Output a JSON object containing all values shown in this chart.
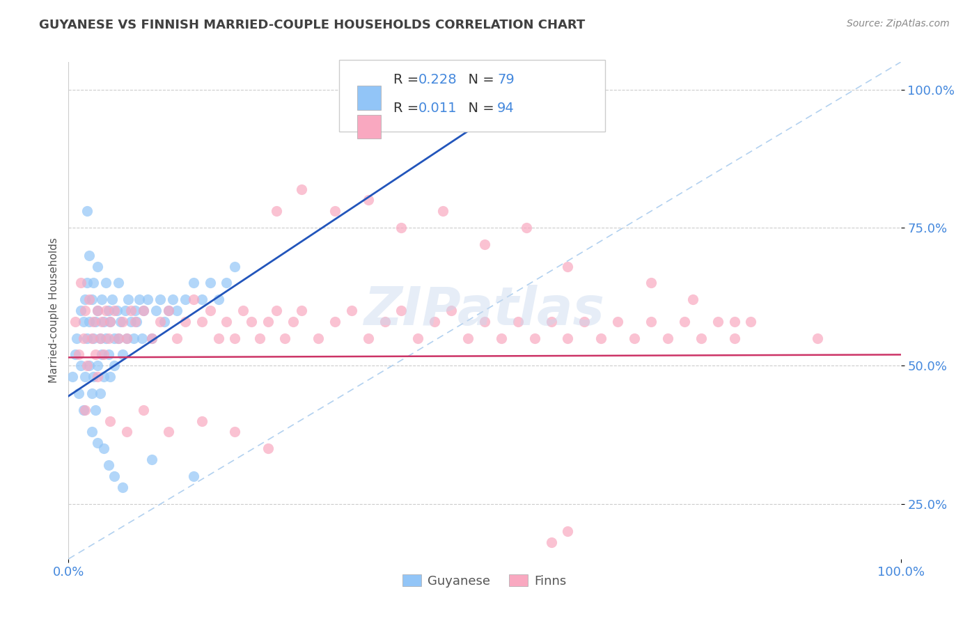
{
  "title": "GUYANESE VS FINNISH MARRIED-COUPLE HOUSEHOLDS CORRELATION CHART",
  "source_text": "Source: ZipAtlas.com",
  "ylabel": "Married-couple Households",
  "watermark": "ZIPatlas",
  "legend_labels": [
    "Guyanese",
    "Finns"
  ],
  "r_guyanese": 0.228,
  "n_guyanese": 79,
  "r_finns": 0.011,
  "n_finns": 94,
  "color_guyanese": "#92C5F7",
  "color_finns": "#F9A8C0",
  "color_trend_guyanese": "#2255BB",
  "color_trend_finns": "#CC3366",
  "color_ref_line": "#AACCEE",
  "color_title": "#404040",
  "color_tick": "#4488DD",
  "color_r_value": "#4488DD",
  "xlim": [
    0,
    1
  ],
  "ylim": [
    0.15,
    1.05
  ],
  "x_ticks": [
    0.0,
    1.0
  ],
  "x_tick_labels": [
    "0.0%",
    "100.0%"
  ],
  "y_tick_labels_right": [
    "25.0%",
    "50.0%",
    "75.0%",
    "100.0%"
  ],
  "y_tick_positions_right": [
    0.25,
    0.5,
    0.75,
    1.0
  ],
  "guyanese_x": [
    0.005,
    0.008,
    0.01,
    0.012,
    0.015,
    0.015,
    0.018,
    0.018,
    0.02,
    0.02,
    0.022,
    0.022,
    0.025,
    0.025,
    0.025,
    0.028,
    0.028,
    0.03,
    0.03,
    0.03,
    0.032,
    0.032,
    0.035,
    0.035,
    0.035,
    0.038,
    0.038,
    0.04,
    0.04,
    0.042,
    0.042,
    0.045,
    0.045,
    0.048,
    0.048,
    0.05,
    0.05,
    0.052,
    0.055,
    0.055,
    0.058,
    0.06,
    0.06,
    0.062,
    0.065,
    0.068,
    0.07,
    0.072,
    0.075,
    0.078,
    0.08,
    0.082,
    0.085,
    0.088,
    0.09,
    0.095,
    0.1,
    0.105,
    0.11,
    0.115,
    0.12,
    0.125,
    0.13,
    0.14,
    0.15,
    0.16,
    0.17,
    0.18,
    0.19,
    0.2,
    0.022,
    0.028,
    0.035,
    0.042,
    0.048,
    0.055,
    0.065,
    0.1,
    0.15
  ],
  "guyanese_y": [
    0.48,
    0.52,
    0.55,
    0.45,
    0.6,
    0.5,
    0.58,
    0.42,
    0.62,
    0.48,
    0.55,
    0.65,
    0.58,
    0.5,
    0.7,
    0.62,
    0.45,
    0.55,
    0.48,
    0.65,
    0.58,
    0.42,
    0.6,
    0.5,
    0.68,
    0.55,
    0.45,
    0.62,
    0.52,
    0.58,
    0.48,
    0.55,
    0.65,
    0.52,
    0.6,
    0.58,
    0.48,
    0.62,
    0.55,
    0.5,
    0.6,
    0.55,
    0.65,
    0.58,
    0.52,
    0.6,
    0.55,
    0.62,
    0.58,
    0.55,
    0.6,
    0.58,
    0.62,
    0.55,
    0.6,
    0.62,
    0.55,
    0.6,
    0.62,
    0.58,
    0.6,
    0.62,
    0.6,
    0.62,
    0.65,
    0.62,
    0.65,
    0.62,
    0.65,
    0.68,
    0.78,
    0.38,
    0.36,
    0.35,
    0.32,
    0.3,
    0.28,
    0.33,
    0.3
  ],
  "finns_x": [
    0.008,
    0.012,
    0.015,
    0.018,
    0.02,
    0.022,
    0.025,
    0.028,
    0.03,
    0.032,
    0.035,
    0.038,
    0.04,
    0.042,
    0.045,
    0.048,
    0.05,
    0.055,
    0.06,
    0.065,
    0.07,
    0.075,
    0.08,
    0.09,
    0.1,
    0.11,
    0.12,
    0.13,
    0.14,
    0.15,
    0.16,
    0.17,
    0.18,
    0.19,
    0.2,
    0.21,
    0.22,
    0.23,
    0.24,
    0.25,
    0.26,
    0.27,
    0.28,
    0.3,
    0.32,
    0.34,
    0.36,
    0.38,
    0.4,
    0.42,
    0.44,
    0.46,
    0.48,
    0.5,
    0.52,
    0.54,
    0.56,
    0.58,
    0.6,
    0.62,
    0.64,
    0.66,
    0.68,
    0.7,
    0.72,
    0.74,
    0.76,
    0.78,
    0.8,
    0.82,
    0.25,
    0.28,
    0.32,
    0.36,
    0.4,
    0.45,
    0.5,
    0.55,
    0.6,
    0.7,
    0.75,
    0.8,
    0.9,
    0.02,
    0.035,
    0.05,
    0.07,
    0.09,
    0.12,
    0.16,
    0.2,
    0.24,
    0.6,
    0.58
  ],
  "finns_y": [
    0.58,
    0.52,
    0.65,
    0.55,
    0.6,
    0.5,
    0.62,
    0.55,
    0.58,
    0.52,
    0.6,
    0.55,
    0.58,
    0.52,
    0.6,
    0.55,
    0.58,
    0.6,
    0.55,
    0.58,
    0.55,
    0.6,
    0.58,
    0.6,
    0.55,
    0.58,
    0.6,
    0.55,
    0.58,
    0.62,
    0.58,
    0.6,
    0.55,
    0.58,
    0.55,
    0.6,
    0.58,
    0.55,
    0.58,
    0.6,
    0.55,
    0.58,
    0.6,
    0.55,
    0.58,
    0.6,
    0.55,
    0.58,
    0.6,
    0.55,
    0.58,
    0.6,
    0.55,
    0.58,
    0.55,
    0.58,
    0.55,
    0.58,
    0.55,
    0.58,
    0.55,
    0.58,
    0.55,
    0.58,
    0.55,
    0.58,
    0.55,
    0.58,
    0.55,
    0.58,
    0.78,
    0.82,
    0.78,
    0.8,
    0.75,
    0.78,
    0.72,
    0.75,
    0.68,
    0.65,
    0.62,
    0.58,
    0.55,
    0.42,
    0.48,
    0.4,
    0.38,
    0.42,
    0.38,
    0.4,
    0.38,
    0.35,
    0.2,
    0.18
  ]
}
